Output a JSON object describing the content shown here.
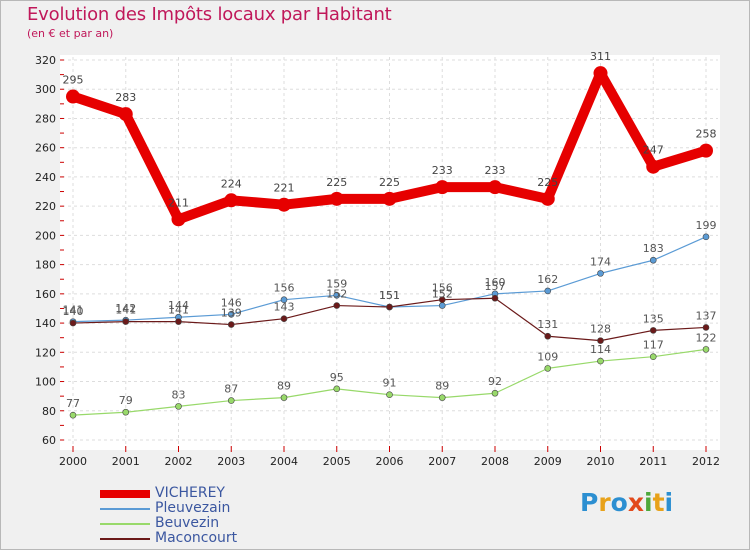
{
  "chart_data": {
    "type": "line",
    "title": "Evolution des Impôts locaux par Habitant",
    "subtitle": "(en € et par an)",
    "x": [
      "2000",
      "2001",
      "2002",
      "2003",
      "2004",
      "2005",
      "2006",
      "2007",
      "2008",
      "2009",
      "2010",
      "2011",
      "2012"
    ],
    "ylim": [
      60,
      320
    ],
    "yticks": [
      "60",
      "80",
      "100",
      "120",
      "140",
      "160",
      "180",
      "200",
      "220",
      "240",
      "260",
      "280",
      "300",
      "320"
    ],
    "grid": true,
    "series": [
      {
        "name": "VICHEREY",
        "color": "#e60000",
        "values": [
          295,
          283,
          211,
          224,
          221,
          225,
          225,
          233,
          233,
          225,
          311,
          247,
          258
        ]
      },
      {
        "name": "Pleuvezain",
        "color": "#5b9bd5",
        "values": [
          141,
          142,
          144,
          146,
          156,
          159,
          151,
          152,
          160,
          162,
          174,
          183,
          199
        ]
      },
      {
        "name": "Beuvezin",
        "color": "#98d96a",
        "values": [
          77,
          79,
          83,
          87,
          89,
          95,
          91,
          89,
          92,
          109,
          114,
          117,
          122
        ]
      },
      {
        "name": "Maconcourt",
        "color": "#6b1a1a",
        "values": [
          140,
          141,
          141,
          139,
          143,
          152,
          151,
          156,
          157,
          131,
          128,
          135,
          137
        ]
      }
    ]
  },
  "logo": {
    "text": "Proxiti",
    "letters": [
      "P",
      "r",
      "o",
      "x",
      "i",
      "t",
      "i"
    ],
    "colors": [
      "#2c8fd1",
      "#e8a21a",
      "#2c8fd1",
      "#e24a1c",
      "#4ea83b",
      "#e8a21a",
      "#2c8fd1"
    ]
  }
}
